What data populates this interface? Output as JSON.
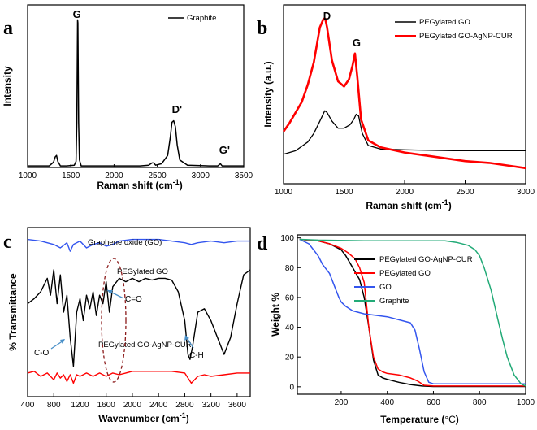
{
  "chart_data": [
    {
      "panel": "a",
      "type": "line",
      "xlabel": "Raman shift (cm",
      "xlabel_sup": "-1",
      "xlabel_close": ")",
      "ylabel": "Intensity",
      "xlim": [
        1000,
        3500
      ],
      "ylim": [
        0,
        1
      ],
      "xticks": [
        1000,
        1500,
        2000,
        2500,
        3000,
        3500
      ],
      "legend": [
        "Graphite"
      ],
      "peak_labels": [
        {
          "text": "G",
          "x": 1580,
          "y": 1.0
        },
        {
          "text": "D'",
          "x": 2690,
          "y": 0.33
        },
        {
          "text": "G'",
          "x": 3240,
          "y": 0.04
        }
      ],
      "series": [
        {
          "name": "Graphite",
          "color": "#000000",
          "x": [
            1000,
            1250,
            1300,
            1320,
            1335,
            1350,
            1380,
            1450,
            1540,
            1560,
            1570,
            1578,
            1582,
            1590,
            1600,
            1620,
            1700,
            2000,
            2300,
            2400,
            2440,
            2460,
            2480,
            2550,
            2620,
            2650,
            2670,
            2690,
            2710,
            2730,
            2760,
            2850,
            3100,
            3200,
            3230,
            3250,
            3300,
            3500
          ],
          "y": [
            0.01,
            0.01,
            0.035,
            0.07,
            0.08,
            0.04,
            0.01,
            0.01,
            0.015,
            0.04,
            0.3,
            0.98,
            0.96,
            0.3,
            0.05,
            0.01,
            0.01,
            0.01,
            0.01,
            0.015,
            0.03,
            0.03,
            0.015,
            0.025,
            0.08,
            0.2,
            0.3,
            0.31,
            0.27,
            0.15,
            0.05,
            0.015,
            0.01,
            0.01,
            0.025,
            0.01,
            0.01,
            0.01
          ]
        }
      ]
    },
    {
      "panel": "b",
      "type": "line",
      "xlabel": "Raman shift (cm",
      "xlabel_sup": "-1",
      "xlabel_close": ")",
      "ylabel": "Intensity (a.u.)",
      "xlim": [
        1000,
        3000
      ],
      "ylim": [
        0,
        1
      ],
      "xticks": [
        1000,
        1500,
        2000,
        2500,
        3000
      ],
      "legend": [
        "PEGylated GO",
        "PEGylated GO-AgNP-CUR"
      ],
      "peak_labels": [
        {
          "text": "D",
          "x": 1345,
          "y": 1.0
        },
        {
          "text": "G",
          "x": 1590,
          "y": 0.83
        }
      ],
      "series": [
        {
          "name": "PEGylated GO",
          "color": "#000000",
          "x": [
            1000,
            1100,
            1200,
            1250,
            1300,
            1340,
            1360,
            1400,
            1450,
            1500,
            1550,
            1580,
            1600,
            1620,
            1650,
            1700,
            1800,
            2000,
            2400,
            2800,
            3000
          ],
          "y": [
            0.22,
            0.24,
            0.29,
            0.34,
            0.41,
            0.47,
            0.46,
            0.41,
            0.37,
            0.37,
            0.39,
            0.42,
            0.45,
            0.44,
            0.34,
            0.27,
            0.25,
            0.245,
            0.24,
            0.24,
            0.24
          ]
        }
      ],
      "series_2": [
        {
          "name": "PEGylated GO-AgNP-CUR",
          "color": "#ff0000",
          "x": [
            1000,
            1050,
            1100,
            1150,
            1200,
            1250,
            1300,
            1330,
            1345,
            1360,
            1400,
            1450,
            1500,
            1540,
            1570,
            1590,
            1610,
            1640,
            1700,
            1800,
            2000,
            2200,
            2500,
            2700,
            2800,
            2900,
            3000
          ],
          "y": [
            0.35,
            0.4,
            0.46,
            0.52,
            0.62,
            0.75,
            0.95,
            1.0,
            1.0,
            0.95,
            0.76,
            0.64,
            0.61,
            0.65,
            0.73,
            0.8,
            0.66,
            0.42,
            0.3,
            0.26,
            0.23,
            0.21,
            0.18,
            0.17,
            0.16,
            0.15,
            0.14
          ]
        }
      ]
    },
    {
      "panel": "c",
      "type": "line",
      "xlabel": "Wavenumber (cm",
      "xlabel_sup": "-1",
      "xlabel_close": ")",
      "ylabel": "% Transmittance",
      "xlim": [
        400,
        3800
      ],
      "ylim": [
        0,
        1
      ],
      "xticks": [
        400,
        800,
        1200,
        1600,
        2000,
        2400,
        2800,
        3200,
        3600
      ],
      "curve_labels": [
        "Graphene oxide (GO)",
        "PEGylated GO",
        "PEGylated GO-AgNP-CUR"
      ],
      "annotations": [
        "C=O",
        "C-O",
        "C-H"
      ],
      "series": [
        {
          "name": "Graphene oxide (GO)",
          "color": "#3355ee",
          "x": [
            400,
            600,
            800,
            900,
            1000,
            1050,
            1100,
            1200,
            1300,
            1400,
            1500,
            1600,
            1700,
            1800,
            2000,
            2200,
            2400,
            2600,
            2800,
            2900,
            3000,
            3200,
            3400,
            3600,
            3800
          ],
          "y": [
            0.93,
            0.92,
            0.9,
            0.88,
            0.91,
            0.86,
            0.9,
            0.92,
            0.88,
            0.9,
            0.91,
            0.89,
            0.9,
            0.92,
            0.93,
            0.93,
            0.93,
            0.92,
            0.91,
            0.9,
            0.91,
            0.92,
            0.91,
            0.92,
            0.92
          ]
        },
        {
          "name": "PEGylated GO",
          "color": "#000000",
          "x": [
            400,
            500,
            600,
            700,
            750,
            800,
            850,
            900,
            950,
            1000,
            1050,
            1100,
            1150,
            1200,
            1250,
            1300,
            1350,
            1400,
            1450,
            1500,
            1550,
            1600,
            1650,
            1700,
            1800,
            1900,
            2000,
            2100,
            2200,
            2300,
            2400,
            2500,
            2600,
            2700,
            2800,
            2850,
            2880,
            2920,
            2960,
            3000,
            3100,
            3200,
            3300,
            3400,
            3500,
            3600,
            3700,
            3800
          ],
          "y": [
            0.55,
            0.58,
            0.62,
            0.7,
            0.6,
            0.75,
            0.55,
            0.72,
            0.5,
            0.6,
            0.35,
            0.18,
            0.5,
            0.58,
            0.45,
            0.6,
            0.52,
            0.62,
            0.48,
            0.6,
            0.55,
            0.68,
            0.5,
            0.65,
            0.7,
            0.68,
            0.7,
            0.68,
            0.7,
            0.69,
            0.7,
            0.7,
            0.69,
            0.62,
            0.45,
            0.25,
            0.22,
            0.3,
            0.4,
            0.5,
            0.52,
            0.45,
            0.35,
            0.25,
            0.35,
            0.55,
            0.72,
            0.75
          ]
        },
        {
          "name": "PEGylated GO-AgNP-CUR",
          "color": "#ff0000",
          "x": [
            400,
            500,
            600,
            700,
            800,
            850,
            900,
            950,
            1000,
            1050,
            1100,
            1150,
            1200,
            1300,
            1400,
            1500,
            1600,
            1700,
            1800,
            1900,
            2000,
            2200,
            2400,
            2600,
            2800,
            2900,
            2950,
            3000,
            3100,
            3200,
            3400,
            3600,
            3800
          ],
          "y": [
            0.14,
            0.15,
            0.12,
            0.14,
            0.1,
            0.14,
            0.11,
            0.13,
            0.09,
            0.13,
            0.08,
            0.13,
            0.12,
            0.14,
            0.12,
            0.14,
            0.12,
            0.14,
            0.13,
            0.14,
            0.15,
            0.15,
            0.15,
            0.15,
            0.14,
            0.08,
            0.1,
            0.12,
            0.13,
            0.12,
            0.13,
            0.14,
            0.14
          ]
        }
      ]
    },
    {
      "panel": "d",
      "type": "line",
      "xlabel": "Temperature (",
      "xlabel_unit": "°C",
      "xlabel_close": ")",
      "ylabel": "Weight %",
      "xlim": [
        0,
        1000
      ],
      "ylim": [
        0,
        100
      ],
      "xticks": [
        200,
        400,
        600,
        800,
        1000
      ],
      "yticks": [
        0,
        20,
        40,
        60,
        80,
        100
      ],
      "legend": [
        "PEGylated GO-AgNP-CUR",
        "PEGylated GO",
        "GO",
        "Graphite"
      ],
      "series": [
        {
          "name": "PEGylated GO-AgNP-CUR",
          "color": "#000000",
          "x": [
            20,
            100,
            150,
            200,
            220,
            250,
            280,
            300,
            320,
            340,
            360,
            380,
            400,
            450,
            500,
            550,
            600,
            1000
          ],
          "y": [
            99,
            98,
            96,
            92,
            88,
            80,
            72,
            60,
            40,
            18,
            8,
            6,
            5,
            3,
            1.5,
            0.5,
            0.2,
            0.2
          ]
        },
        {
          "name": "PEGylated GO",
          "color": "#ff0000",
          "x": [
            20,
            100,
            150,
            200,
            230,
            260,
            280,
            300,
            320,
            340,
            360,
            380,
            400,
            450,
            500,
            530,
            560,
            600,
            1000
          ],
          "y": [
            99,
            98,
            96,
            93,
            90,
            86,
            80,
            70,
            40,
            20,
            12,
            10,
            9,
            8,
            6,
            4,
            1,
            0.5,
            0.5
          ]
        },
        {
          "name": "GO",
          "color": "#3355ee",
          "x": [
            20,
            60,
            100,
            120,
            150,
            170,
            190,
            200,
            220,
            250,
            300,
            350,
            400,
            450,
            500,
            520,
            540,
            560,
            580,
            600,
            1000
          ],
          "y": [
            99,
            96,
            88,
            82,
            76,
            68,
            60,
            57,
            54,
            51,
            49,
            48,
            47,
            45,
            43,
            38,
            25,
            10,
            3,
            2,
            2
          ]
        },
        {
          "name": "Graphite",
          "color": "#22aa77",
          "x": [
            20,
            100,
            300,
            500,
            650,
            700,
            750,
            780,
            800,
            820,
            850,
            880,
            900,
            920,
            950,
            980,
            1000
          ],
          "y": [
            99,
            98.5,
            98,
            98,
            98,
            97,
            95,
            92,
            88,
            80,
            65,
            45,
            32,
            20,
            8,
            2,
            0.5
          ]
        }
      ]
    }
  ]
}
